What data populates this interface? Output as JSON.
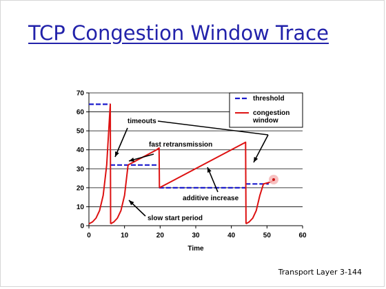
{
  "slide": {
    "title": "TCP Congestion Window Trace",
    "footer": "Transport Layer 3-144"
  },
  "chart_data": {
    "type": "line",
    "title": "",
    "xlabel": "Time",
    "ylabel": "",
    "xlim": [
      0,
      60
    ],
    "ylim": [
      0,
      70
    ],
    "x_ticks": [
      0,
      10,
      20,
      30,
      40,
      50,
      60
    ],
    "y_ticks": [
      0,
      10,
      20,
      30,
      40,
      50,
      60,
      70
    ],
    "grid": "horizontal",
    "legend": "top-right",
    "series": [
      {
        "name": "threshold",
        "color": "#1a1acc",
        "style": "dashed",
        "segments": [
          [
            [
              0,
              64
            ],
            [
              6,
              64
            ]
          ],
          [
            [
              6,
              32
            ],
            [
              19.7,
              32
            ]
          ],
          [
            [
              19.7,
              20
            ],
            [
              44,
              20
            ]
          ],
          [
            [
              44,
              22
            ],
            [
              50.5,
              22
            ]
          ]
        ]
      },
      {
        "name": "congestion window",
        "color": "#dd1111",
        "style": "solid",
        "segments": [
          [
            [
              0,
              1
            ],
            [
              1,
              2
            ],
            [
              2,
              4
            ],
            [
              3,
              8
            ],
            [
              4,
              16
            ],
            [
              5,
              32
            ],
            [
              6,
              64
            ],
            [
              6.1,
              1
            ]
          ],
          [
            [
              6.1,
              1
            ],
            [
              7,
              2
            ],
            [
              8,
              4
            ],
            [
              9,
              8
            ],
            [
              10,
              16
            ],
            [
              11,
              32
            ],
            [
              12,
              33
            ],
            [
              13,
              34
            ],
            [
              14,
              35
            ],
            [
              15,
              36
            ],
            [
              16,
              37
            ],
            [
              17,
              38
            ],
            [
              18,
              39
            ],
            [
              19,
              40
            ],
            [
              19.7,
              41
            ],
            [
              19.8,
              20
            ]
          ],
          [
            [
              19.8,
              20
            ],
            [
              44,
              44
            ],
            [
              44.1,
              1
            ]
          ],
          [
            [
              44.1,
              1
            ],
            [
              45,
              2
            ],
            [
              46,
              4
            ],
            [
              47,
              8
            ],
            [
              48,
              16
            ],
            [
              49,
              22
            ],
            [
              50,
              22.5
            ],
            [
              51,
              23
            ],
            [
              52,
              24
            ]
          ]
        ]
      }
    ],
    "annotations": [
      {
        "text": "timeouts"
      },
      {
        "text": "fast retransmission"
      },
      {
        "text": "additive increase"
      },
      {
        "text": "slow start period"
      }
    ]
  }
}
